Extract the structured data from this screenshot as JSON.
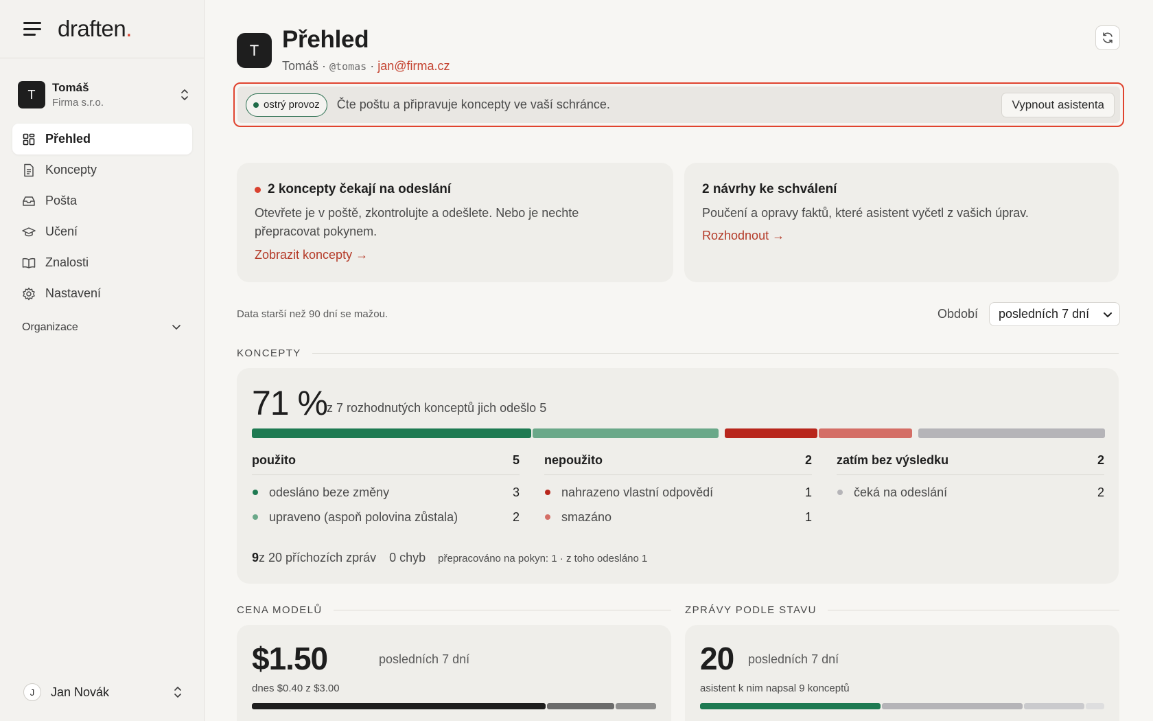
{
  "brand": {
    "logo_text": "draften",
    "logo_dot": "."
  },
  "org": {
    "avatar": "T",
    "name": "Tomáš",
    "company": "Firma s.r.o."
  },
  "nav": {
    "items": [
      {
        "label": "Přehled",
        "icon": "dashboard-icon",
        "active": true
      },
      {
        "label": "Koncepty",
        "icon": "document-icon"
      },
      {
        "label": "Pošta",
        "icon": "inbox-icon"
      },
      {
        "label": "Učení",
        "icon": "graduation-cap-icon"
      },
      {
        "label": "Znalosti",
        "icon": "book-icon"
      },
      {
        "label": "Nastavení",
        "icon": "gear-icon"
      }
    ],
    "section_label": "Organizace"
  },
  "user": {
    "avatar": "J",
    "name": "Jan Novák"
  },
  "header": {
    "avatar": "T",
    "title": "Přehled",
    "name": "Tomáš",
    "sep": " · ",
    "handle": "@tomas",
    "email": "jan@firma.cz"
  },
  "status": {
    "pill_label": "ostrý provoz",
    "text": "Čte poštu a připravuje koncepty ve vaší schránce.",
    "button_label": "Vypnout asistenta"
  },
  "cards": {
    "drafts": {
      "title": "2 koncepty čekají na odeslání",
      "desc": "Otevřete je v poště, zkontrolujte a odešlete. Nebo je nechte přepracovat pokynem.",
      "link": "Zobrazit koncepty →"
    },
    "proposals": {
      "title": "2 návrhy ke schválení",
      "desc": "Poučení a opravy faktů, které asistent vyčetl z vašich úprav.",
      "link": "Rozhodnout →"
    }
  },
  "retention_note": "Data starší než 90 dní se mažou.",
  "period": {
    "label": "Období",
    "selected": "posledních 7 dní"
  },
  "concepts": {
    "section_title": "KONCEPTY",
    "percent": "71 %",
    "summary": "z 7 rozhodnutých konceptů jich odešlo 5",
    "columns": [
      {
        "title": "použito",
        "count": "5",
        "rows": [
          {
            "label": "odesláno beze změny",
            "value": "3",
            "color": "#1e7a52"
          },
          {
            "label": "upraveno (aspoň polovina zůstala)",
            "value": "2",
            "color": "#6aa889"
          }
        ]
      },
      {
        "title": "nepoužito",
        "count": "2",
        "rows": [
          {
            "label": "nahrazeno vlastní odpovědí",
            "value": "1",
            "color": "#b8261c"
          },
          {
            "label": "smazáno",
            "value": "1",
            "color": "#d46e66"
          }
        ]
      },
      {
        "title": "zatím bez výsledku",
        "count": "2",
        "rows": [
          {
            "label": "čeká na odeslání",
            "value": "2",
            "color": "#b5b4b8"
          }
        ]
      }
    ],
    "footer": {
      "count": "9",
      "incoming": " z 20 příchozích zpráv",
      "errors": "0 chyb",
      "reworked": "přepracováno na pokyn: 1 · z toho odesláno 1"
    }
  },
  "cost": {
    "section_title": "CENA MODELŮ",
    "value": "$1.50",
    "period": "posledních 7 dní",
    "sub": "dnes $0.40 z $3.00",
    "bar_parts": [
      0.73,
      0.17,
      0.1
    ]
  },
  "messages": {
    "section_title": "ZPRÁVY PODLE STAVU",
    "value": "20",
    "period": "posledních 7 dní",
    "sub": "asistent k nim napsal 9 konceptů",
    "bar_parts": [
      0.45,
      0.35,
      0.15,
      0.05
    ]
  },
  "colors": {
    "accent_red": "#d9412f",
    "link": "#b43a28",
    "used_dark": "#1e7a52",
    "used_light": "#6aa889",
    "unused_dark": "#b8261c",
    "unused_light": "#d46e66",
    "pending": "#b5b4b8"
  }
}
